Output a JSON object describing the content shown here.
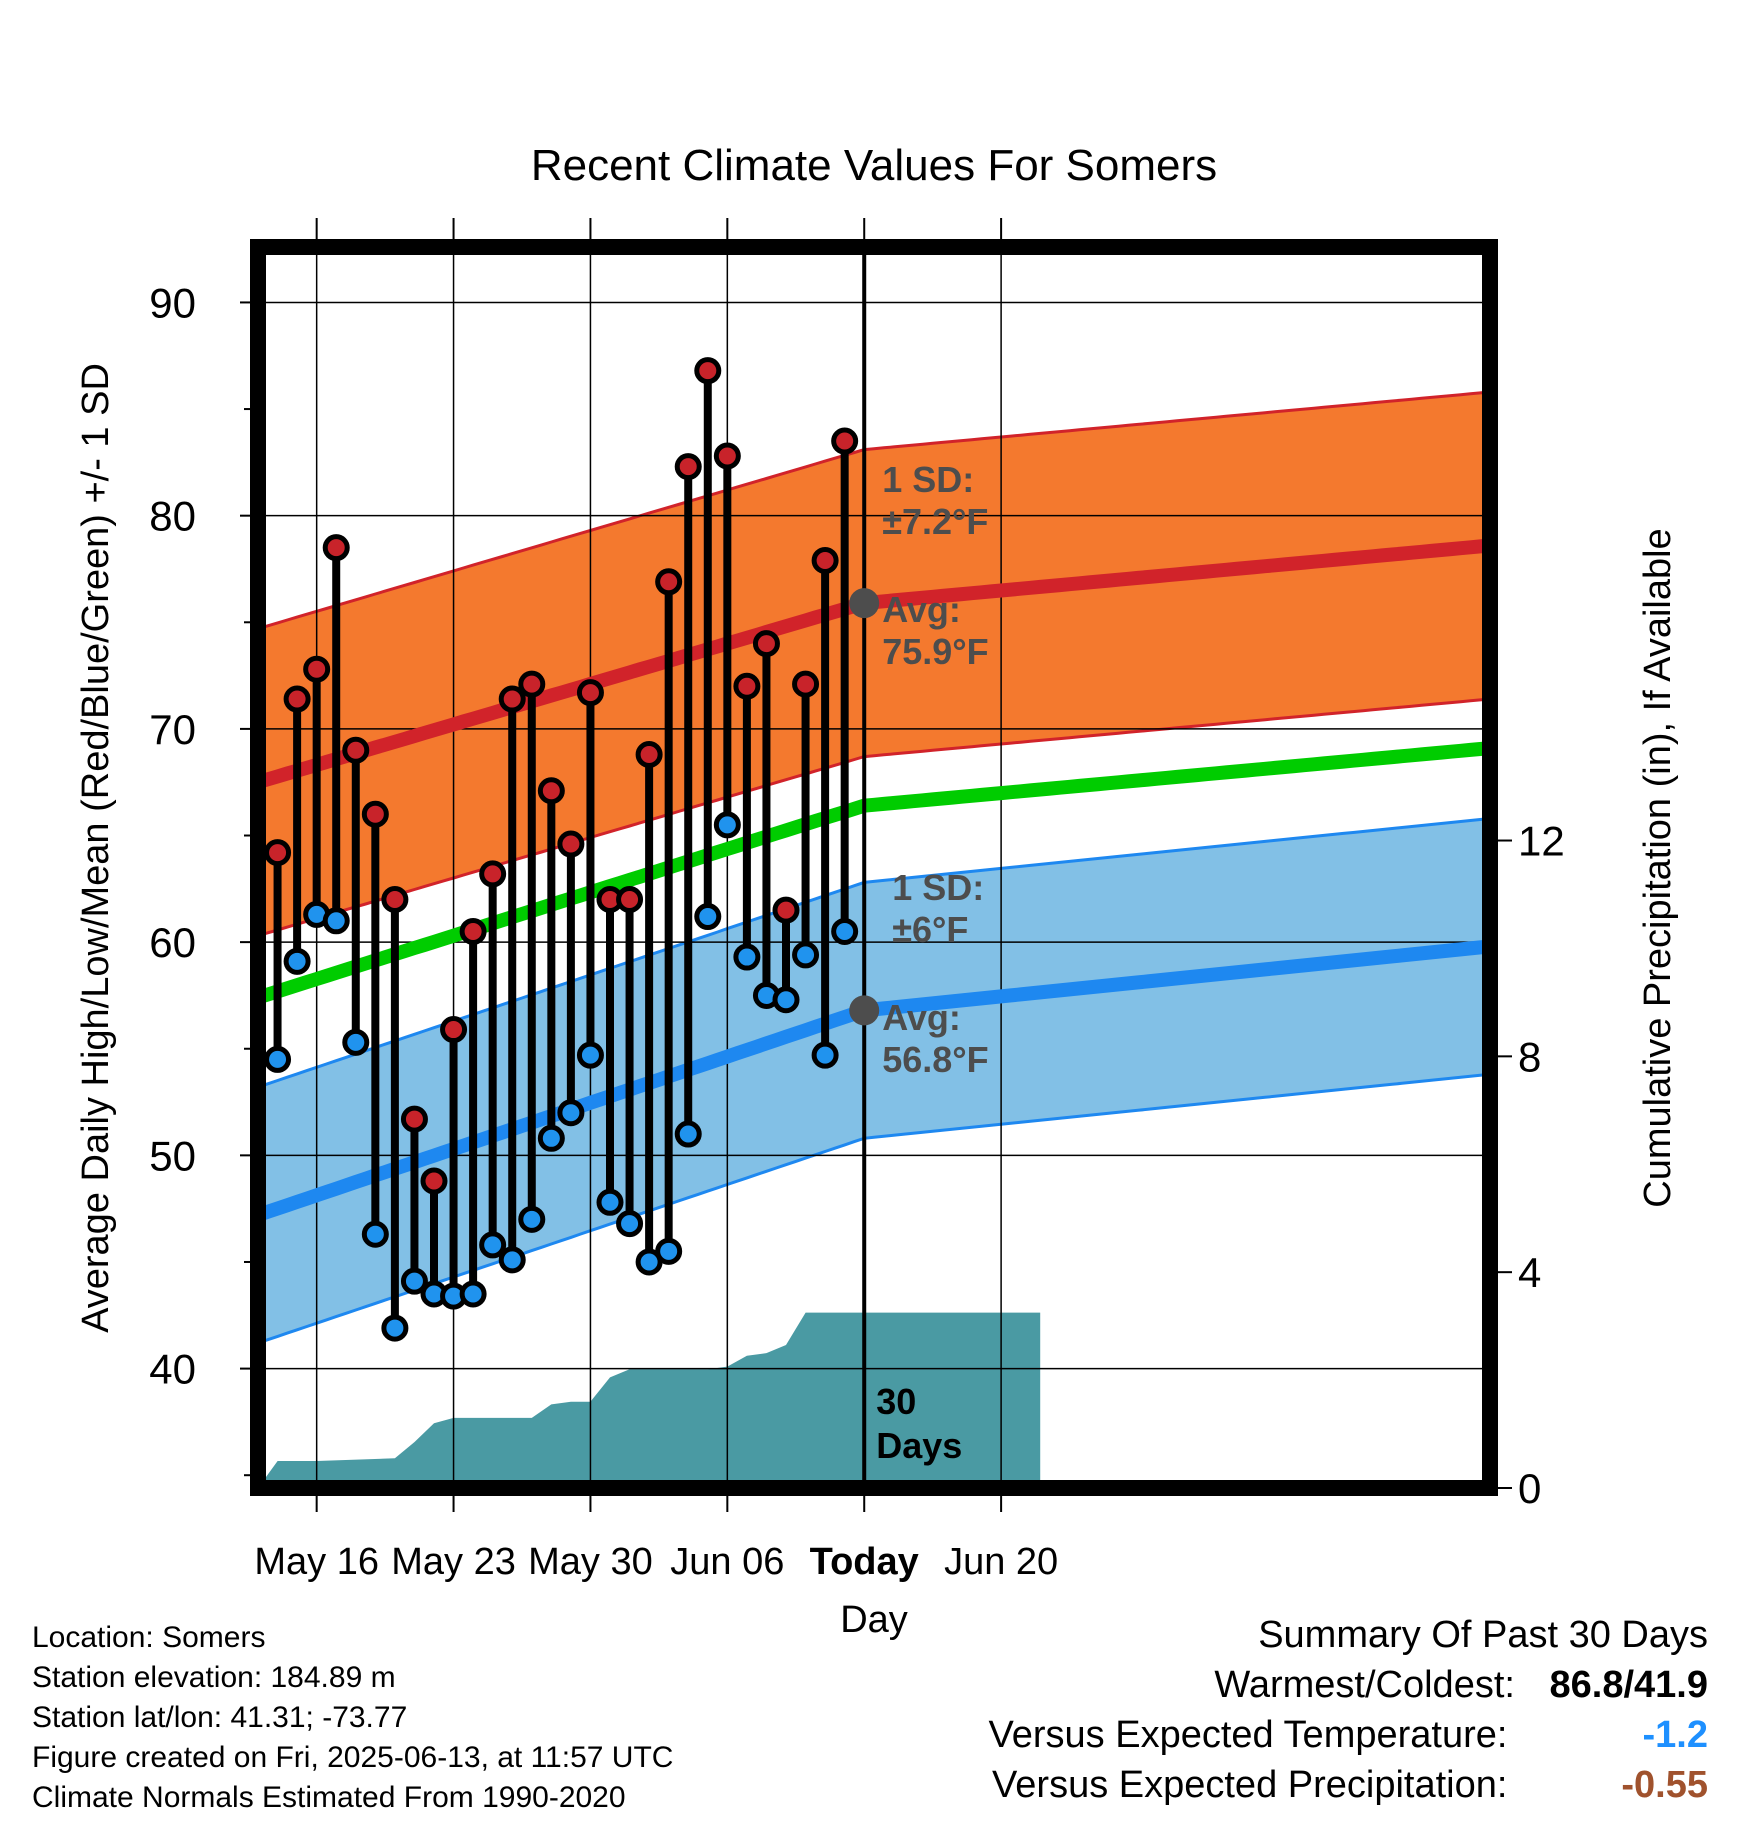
{
  "chart_data": {
    "type": "line",
    "title": "Recent Climate Values For Somers",
    "xlabel": "Day",
    "ylabel": "Average Daily High/Low/Mean (Red/Blue/Green) +/- 1 SD",
    "y2label": "Cumulative Precipitation (in), If Available",
    "ylim": [
      34.4,
      92.6
    ],
    "y2lim": [
      0,
      23.0
    ],
    "yticks": [
      40,
      50,
      60,
      70,
      80,
      90
    ],
    "y2ticks": [
      0,
      4,
      8,
      12
    ],
    "x_range_days": [
      0,
      63
    ],
    "x_ticks": [
      {
        "day": 3,
        "label": "May 16"
      },
      {
        "day": 10,
        "label": "May 23"
      },
      {
        "day": 17,
        "label": "May 30"
      },
      {
        "day": 24,
        "label": "Jun 06"
      },
      {
        "day": 31,
        "label": "Today"
      },
      {
        "day": 38,
        "label": "Jun 20"
      }
    ],
    "grid": true,
    "x_day_of_first_observation": 1,
    "observed_highs": [
      64.2,
      71.4,
      72.8,
      78.5,
      69.0,
      66.0,
      62.0,
      51.7,
      48.8,
      55.9,
      60.5,
      63.2,
      71.4,
      72.1,
      67.1,
      64.6,
      71.7,
      62.0,
      62.0,
      68.8,
      76.9,
      82.3,
      86.8,
      82.8,
      72.0,
      74.0,
      61.5,
      72.1,
      77.9,
      83.5
    ],
    "observed_lows": [
      54.5,
      59.1,
      61.3,
      61.0,
      55.3,
      46.3,
      41.9,
      44.1,
      43.5,
      43.4,
      43.5,
      45.8,
      45.1,
      47.0,
      50.8,
      52.0,
      54.7,
      47.8,
      46.8,
      45.0,
      45.5,
      51.0,
      61.2,
      65.5,
      59.3,
      57.5,
      57.3,
      59.4,
      54.7,
      60.5
    ],
    "normal_high_series": {
      "name": "Avg",
      "start": 67.5,
      "today": 75.9,
      "end": 78.6
    },
    "normal_low_series": {
      "name": "Avg",
      "start": 47.2,
      "today": 56.8,
      "end": 59.8
    },
    "normal_mean_series": {
      "start": 57.4,
      "today": 66.4,
      "end": 69.1
    },
    "high_sd_f": 7.2,
    "low_sd_f": 6.0,
    "precip_cumulative_days": [
      0,
      1,
      3,
      7,
      8,
      9,
      10,
      14,
      15,
      16,
      17,
      18,
      19,
      23,
      24,
      25,
      26,
      27,
      28,
      31,
      35,
      40
    ],
    "precip_cumulative_in": [
      0,
      0.5,
      0.5,
      0.55,
      0.85,
      1.2,
      1.3,
      1.3,
      1.55,
      1.6,
      1.6,
      2.05,
      2.2,
      2.2,
      2.25,
      2.45,
      2.5,
      2.65,
      3.25,
      3.25,
      3.25,
      3.25
    ],
    "annotations": {
      "high_sd_line1": "1 SD:",
      "high_sd_line2": "±7.2°F",
      "high_avg_line1": "Avg:",
      "high_avg_line2": "75.9°F",
      "low_sd_line1": "1 SD:",
      "low_sd_line2": "±6°F",
      "low_avg_line1": "Avg:",
      "low_avg_line2": "56.8°F",
      "window_line1": "30",
      "window_line2": "Days"
    }
  },
  "colors": {
    "high_band": "#f4792e",
    "high_line": "#d1232a",
    "low_band": "#82c0e6",
    "low_line": "#1e88f0",
    "mean_line": "#00cc00",
    "precip": "#4a9aa3",
    "high_dot": "#c8232a",
    "low_dot": "#2093ee",
    "annotation": "#4d4d4d",
    "temp_anomaly": "#1e90ff",
    "precip_anomaly": "#a0522d"
  },
  "footer": {
    "location": "Location: Somers",
    "elevation": "Station elevation: 184.89 m",
    "latlon": "Station lat/lon: 41.31; -73.77",
    "created": "Figure created on Fri, 2025-06-13, at 11:57 UTC",
    "normals": "Climate Normals Estimated From 1990-2020"
  },
  "summary": {
    "heading": "Summary Of Past 30 Days",
    "warmest_label": "Warmest/Coldest:",
    "warmest_value": "86.8/41.9",
    "temp_label": "Versus Expected Temperature:",
    "temp_value": "-1.2",
    "precip_label": "Versus Expected Precipitation:",
    "precip_value": "-0.55"
  }
}
